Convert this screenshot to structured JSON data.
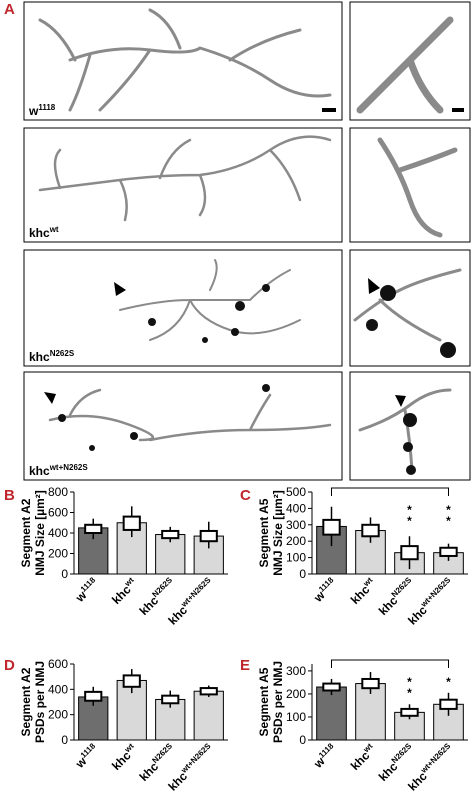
{
  "panel_labels": [
    "A",
    "B",
    "C",
    "D",
    "E"
  ],
  "images": {
    "rows": [
      {
        "label": {
          "text": "w",
          "sup": "1118"
        }
      },
      {
        "label": {
          "text": "khc",
          "sup": "wt"
        }
      },
      {
        "label": {
          "text": "khc",
          "sup": "N262S"
        }
      },
      {
        "label": {
          "text": "khc",
          "sup": "wt+N262S"
        }
      }
    ]
  },
  "chart_data": [
    {
      "type": "bar",
      "ylabel": [
        "Segment A2",
        "NMJ Size [µm²]"
      ],
      "categories": [
        {
          "text": "w",
          "sup": "1118"
        },
        {
          "text": "khc",
          "sup": "wt"
        },
        {
          "text": "khc",
          "sup": "N262S"
        },
        {
          "text": "khc",
          "sup": "wt+N262S"
        }
      ],
      "values": [
        450,
        500,
        385,
        370
      ],
      "box_low": [
        400,
        430,
        350,
        320
      ],
      "box_high": [
        480,
        560,
        420,
        420
      ],
      "whisker_low": [
        340,
        360,
        310,
        250
      ],
      "whisker_high": [
        540,
        660,
        460,
        510
      ],
      "colors": [
        "#6e6e6e",
        "#d9d9d9",
        "#d9d9d9",
        "#d9d9d9"
      ],
      "ylim": [
        0,
        800
      ],
      "yticks": [
        0,
        200,
        400,
        600,
        800
      ],
      "bracket": false,
      "significance": [
        null,
        null,
        null,
        null
      ]
    },
    {
      "type": "bar",
      "ylabel": [
        "Segment A5",
        "NMJ Size [µm²]"
      ],
      "categories": [
        {
          "text": "w",
          "sup": "1118"
        },
        {
          "text": "khc",
          "sup": "wt"
        },
        {
          "text": "khc",
          "sup": "N262S"
        },
        {
          "text": "khc",
          "sup": "wt+N262S"
        }
      ],
      "values": [
        290,
        265,
        130,
        130
      ],
      "box_low": [
        240,
        230,
        90,
        110
      ],
      "box_high": [
        330,
        300,
        170,
        160
      ],
      "whisker_low": [
        170,
        190,
        30,
        80
      ],
      "whisker_high": [
        410,
        345,
        230,
        185
      ],
      "colors": [
        "#6e6e6e",
        "#d9d9d9",
        "#d9d9d9",
        "#d9d9d9"
      ],
      "ylim": [
        0,
        500
      ],
      "yticks": [
        0,
        100,
        200,
        300,
        400,
        500
      ],
      "bracket": true,
      "significance": [
        null,
        null,
        [
          "*",
          "*"
        ],
        [
          "*",
          "*"
        ]
      ]
    },
    {
      "type": "bar",
      "ylabel": [
        "Segment A2",
        "PSDs per NMJ"
      ],
      "categories": [
        {
          "text": "w",
          "sup": "1118"
        },
        {
          "text": "khc",
          "sup": "wt"
        },
        {
          "text": "khc",
          "sup": "N262S"
        },
        {
          "text": "khc",
          "sup": "wt+N262S"
        }
      ],
      "values": [
        340,
        470,
        320,
        385
      ],
      "box_low": [
        310,
        420,
        290,
        360
      ],
      "box_high": [
        380,
        510,
        350,
        410
      ],
      "whisker_low": [
        270,
        370,
        255,
        340
      ],
      "whisker_high": [
        420,
        560,
        390,
        430
      ],
      "colors": [
        "#6e6e6e",
        "#d9d9d9",
        "#d9d9d9",
        "#d9d9d9"
      ],
      "ylim": [
        0,
        600
      ],
      "yticks": [
        0,
        200,
        400,
        600
      ],
      "bracket": false,
      "significance": [
        null,
        null,
        null,
        null
      ]
    },
    {
      "type": "bar",
      "ylabel": [
        "Segment A5",
        "PSDs per NMJ"
      ],
      "categories": [
        {
          "text": "w",
          "sup": "1118"
        },
        {
          "text": "khc",
          "sup": "wt"
        },
        {
          "text": "khc",
          "sup": "N262S"
        },
        {
          "text": "khc",
          "sup": "wt+N262S"
        }
      ],
      "values": [
        230,
        245,
        120,
        155
      ],
      "box_low": [
        215,
        225,
        105,
        135
      ],
      "box_high": [
        245,
        265,
        135,
        175
      ],
      "whisker_low": [
        195,
        200,
        90,
        105
      ],
      "whisker_high": [
        265,
        295,
        155,
        205
      ],
      "colors": [
        "#6e6e6e",
        "#d9d9d9",
        "#d9d9d9",
        "#d9d9d9"
      ],
      "ylim": [
        0,
        330
      ],
      "yticks": [
        0,
        100,
        200,
        300
      ],
      "bracket": true,
      "significance": [
        null,
        null,
        [
          "*",
          "*"
        ],
        [
          "*"
        ]
      ]
    }
  ]
}
